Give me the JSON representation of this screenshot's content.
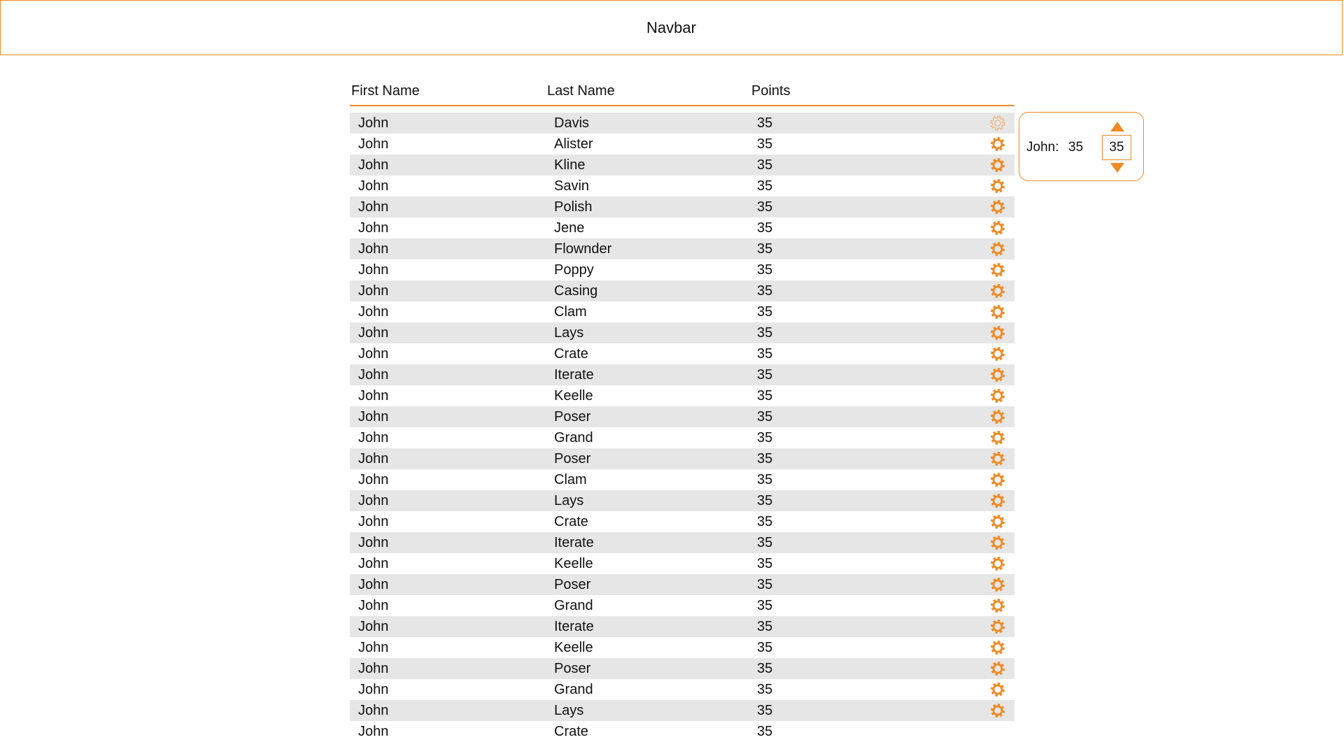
{
  "navbar": {
    "title": "Navbar"
  },
  "colors": {
    "accent": "#f08a24",
    "row_shade": "#e6e6e6"
  },
  "table": {
    "headers": {
      "first": "First Name",
      "last": "Last Name",
      "points": "Points"
    },
    "rows": [
      {
        "first": "John",
        "last": "Davis",
        "points": "35",
        "icon": "gear-icon",
        "icon_state": "selected"
      },
      {
        "first": "John",
        "last": "Alister",
        "points": "35",
        "icon": "gear-icon"
      },
      {
        "first": "John",
        "last": "Kline",
        "points": "35",
        "icon": "gear-icon"
      },
      {
        "first": "John",
        "last": "Savin",
        "points": "35",
        "icon": "gear-icon"
      },
      {
        "first": "John",
        "last": "Polish",
        "points": "35",
        "icon": "gear-icon"
      },
      {
        "first": "John",
        "last": "Jene",
        "points": "35",
        "icon": "gear-icon"
      },
      {
        "first": "John",
        "last": "Flownder",
        "points": "35",
        "icon": "gear-icon"
      },
      {
        "first": "John",
        "last": "Poppy",
        "points": "35",
        "icon": "gear-icon"
      },
      {
        "first": "John",
        "last": "Casing",
        "points": "35",
        "icon": "gear-icon"
      },
      {
        "first": "John",
        "last": "Clam",
        "points": "35",
        "icon": "gear-icon"
      },
      {
        "first": "John",
        "last": "Lays",
        "points": "35",
        "icon": "gear-icon"
      },
      {
        "first": "John",
        "last": "Crate",
        "points": "35",
        "icon": "gear-icon"
      },
      {
        "first": "John",
        "last": "Iterate",
        "points": "35",
        "icon": "gear-icon"
      },
      {
        "first": "John",
        "last": "Keelle",
        "points": "35",
        "icon": "gear-icon"
      },
      {
        "first": "John",
        "last": "Poser",
        "points": "35",
        "icon": "gear-icon"
      },
      {
        "first": "John",
        "last": "Grand",
        "points": "35",
        "icon": "gear-icon"
      },
      {
        "first": "John",
        "last": "Poser",
        "points": "35",
        "icon": "gear-icon"
      },
      {
        "first": "John",
        "last": "Clam",
        "points": "35",
        "icon": "gear-icon"
      },
      {
        "first": "John",
        "last": "Lays",
        "points": "35",
        "icon": "gear-icon"
      },
      {
        "first": "John",
        "last": "Crate",
        "points": "35",
        "icon": "gear-icon"
      },
      {
        "first": "John",
        "last": "Iterate",
        "points": "35",
        "icon": "gear-icon"
      },
      {
        "first": "John",
        "last": "Keelle",
        "points": "35",
        "icon": "gear-icon"
      },
      {
        "first": "John",
        "last": "Poser",
        "points": "35",
        "icon": "gear-icon"
      },
      {
        "first": "John",
        "last": "Grand",
        "points": "35",
        "icon": "gear-icon"
      },
      {
        "first": "John",
        "last": "Iterate",
        "points": "35",
        "icon": "gear-icon"
      },
      {
        "first": "John",
        "last": "Keelle",
        "points": "35",
        "icon": "gear-icon"
      },
      {
        "first": "John",
        "last": "Poser",
        "points": "35",
        "icon": "gear-icon"
      },
      {
        "first": "John",
        "last": "Grand",
        "points": "35",
        "icon": "gear-icon"
      },
      {
        "first": "John",
        "last": "Lays",
        "points": "35",
        "icon": "gear-icon"
      },
      {
        "first": "John",
        "last": "Crate",
        "points": "35",
        "icon": ""
      }
    ]
  },
  "editor": {
    "label": "John:",
    "current_value": "35",
    "input_value": "35",
    "increment_icon": "triangle-up-icon",
    "decrement_icon": "triangle-down-icon"
  }
}
